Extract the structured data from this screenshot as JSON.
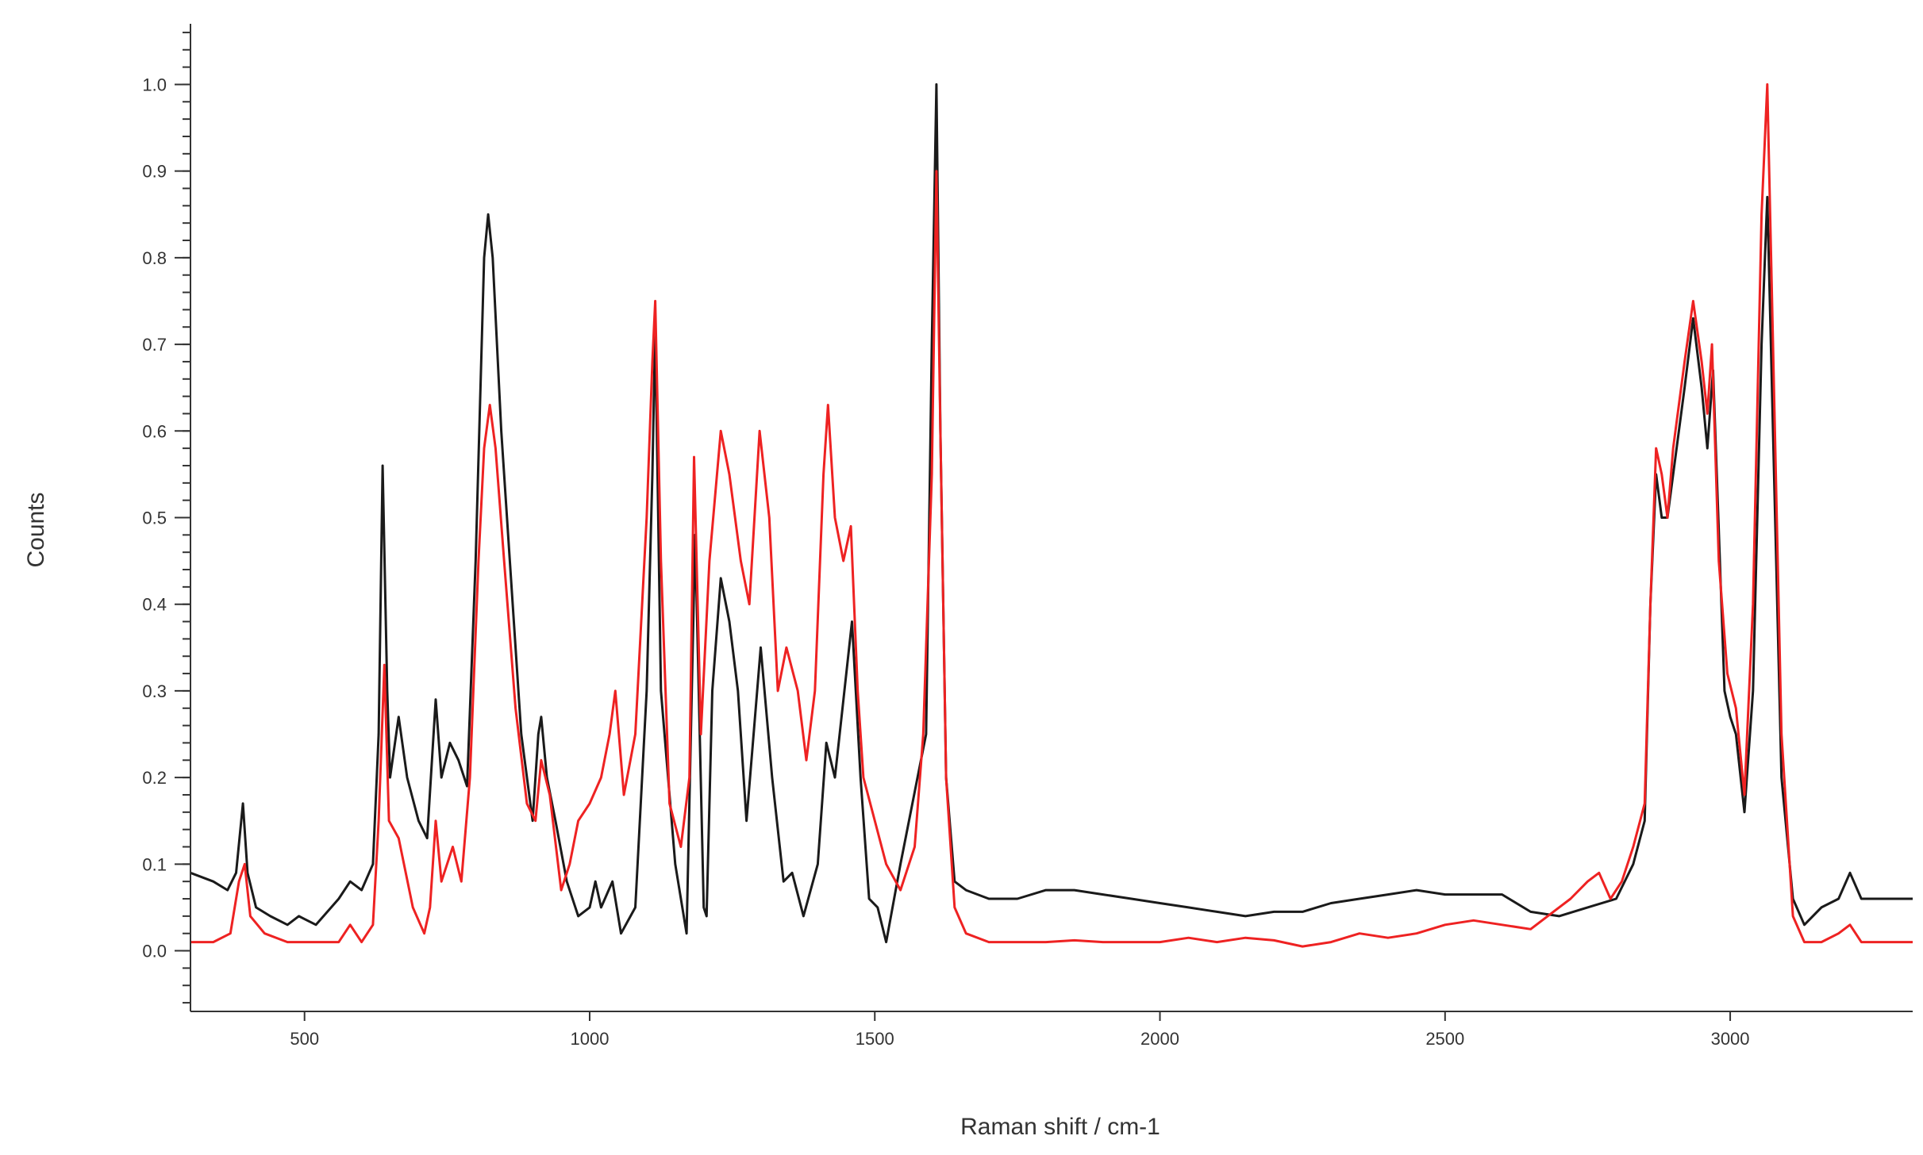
{
  "chart_data": {
    "type": "line",
    "title": "",
    "xlabel": "Raman shift / cm-1",
    "ylabel": "Counts",
    "xlim": [
      300,
      3320
    ],
    "ylim": [
      -0.07,
      1.07
    ],
    "x_ticks": [
      500,
      1000,
      1500,
      2000,
      2500,
      3000
    ],
    "x_tick_labels": [
      "500",
      "1000",
      "1500",
      "2000",
      "2500",
      "3000"
    ],
    "y_ticks": [
      0.0,
      0.1,
      0.2,
      0.3,
      0.4,
      0.5,
      0.6,
      0.7,
      0.8,
      0.9,
      1.0
    ],
    "y_tick_labels": [
      "0.0",
      "0.1",
      "0.2",
      "0.3",
      "0.4",
      "0.5",
      "0.6",
      "0.7",
      "0.8",
      "0.9",
      "1.0"
    ],
    "y_minor_step": 0.02,
    "grid": false,
    "legend": "none",
    "series": [
      {
        "color": "#1a1a1a",
        "points": [
          [
            300,
            0.09
          ],
          [
            340,
            0.08
          ],
          [
            365,
            0.07
          ],
          [
            380,
            0.09
          ],
          [
            392,
            0.17
          ],
          [
            400,
            0.09
          ],
          [
            415,
            0.05
          ],
          [
            440,
            0.04
          ],
          [
            470,
            0.03
          ],
          [
            490,
            0.04
          ],
          [
            520,
            0.03
          ],
          [
            560,
            0.06
          ],
          [
            580,
            0.08
          ],
          [
            600,
            0.07
          ],
          [
            620,
            0.1
          ],
          [
            630,
            0.25
          ],
          [
            637,
            0.56
          ],
          [
            645,
            0.3
          ],
          [
            650,
            0.2
          ],
          [
            665,
            0.27
          ],
          [
            680,
            0.2
          ],
          [
            700,
            0.15
          ],
          [
            715,
            0.13
          ],
          [
            730,
            0.29
          ],
          [
            740,
            0.2
          ],
          [
            755,
            0.24
          ],
          [
            770,
            0.22
          ],
          [
            785,
            0.19
          ],
          [
            800,
            0.45
          ],
          [
            815,
            0.8
          ],
          [
            822,
            0.85
          ],
          [
            830,
            0.8
          ],
          [
            845,
            0.6
          ],
          [
            860,
            0.45
          ],
          [
            880,
            0.25
          ],
          [
            900,
            0.15
          ],
          [
            910,
            0.25
          ],
          [
            915,
            0.27
          ],
          [
            925,
            0.2
          ],
          [
            940,
            0.15
          ],
          [
            960,
            0.08
          ],
          [
            980,
            0.04
          ],
          [
            1000,
            0.05
          ],
          [
            1010,
            0.08
          ],
          [
            1020,
            0.05
          ],
          [
            1040,
            0.08
          ],
          [
            1055,
            0.02
          ],
          [
            1080,
            0.05
          ],
          [
            1100,
            0.3
          ],
          [
            1110,
            0.55
          ],
          [
            1115,
            0.72
          ],
          [
            1125,
            0.3
          ],
          [
            1150,
            0.1
          ],
          [
            1170,
            0.02
          ],
          [
            1185,
            0.48
          ],
          [
            1200,
            0.05
          ],
          [
            1205,
            0.04
          ],
          [
            1215,
            0.3
          ],
          [
            1230,
            0.43
          ],
          [
            1245,
            0.38
          ],
          [
            1260,
            0.3
          ],
          [
            1275,
            0.15
          ],
          [
            1300,
            0.35
          ],
          [
            1320,
            0.2
          ],
          [
            1340,
            0.08
          ],
          [
            1355,
            0.09
          ],
          [
            1375,
            0.04
          ],
          [
            1400,
            0.1
          ],
          [
            1415,
            0.24
          ],
          [
            1430,
            0.2
          ],
          [
            1460,
            0.38
          ],
          [
            1475,
            0.2
          ],
          [
            1490,
            0.06
          ],
          [
            1505,
            0.05
          ],
          [
            1520,
            0.01
          ],
          [
            1545,
            0.1
          ],
          [
            1575,
            0.2
          ],
          [
            1590,
            0.25
          ],
          [
            1600,
            0.7
          ],
          [
            1608,
            1.0
          ],
          [
            1615,
            0.6
          ],
          [
            1625,
            0.2
          ],
          [
            1640,
            0.08
          ],
          [
            1660,
            0.07
          ],
          [
            1700,
            0.06
          ],
          [
            1750,
            0.06
          ],
          [
            1800,
            0.07
          ],
          [
            1850,
            0.07
          ],
          [
            1900,
            0.065
          ],
          [
            1950,
            0.06
          ],
          [
            2000,
            0.055
          ],
          [
            2050,
            0.05
          ],
          [
            2100,
            0.045
          ],
          [
            2150,
            0.04
          ],
          [
            2200,
            0.045
          ],
          [
            2250,
            0.045
          ],
          [
            2300,
            0.055
          ],
          [
            2350,
            0.06
          ],
          [
            2400,
            0.065
          ],
          [
            2450,
            0.07
          ],
          [
            2500,
            0.065
          ],
          [
            2550,
            0.065
          ],
          [
            2600,
            0.065
          ],
          [
            2650,
            0.045
          ],
          [
            2700,
            0.04
          ],
          [
            2750,
            0.05
          ],
          [
            2800,
            0.06
          ],
          [
            2830,
            0.1
          ],
          [
            2850,
            0.15
          ],
          [
            2860,
            0.4
          ],
          [
            2870,
            0.55
          ],
          [
            2880,
            0.5
          ],
          [
            2890,
            0.5
          ],
          [
            2900,
            0.55
          ],
          [
            2920,
            0.65
          ],
          [
            2935,
            0.73
          ],
          [
            2950,
            0.65
          ],
          [
            2960,
            0.58
          ],
          [
            2970,
            0.67
          ],
          [
            2990,
            0.3
          ],
          [
            3000,
            0.27
          ],
          [
            3010,
            0.25
          ],
          [
            3025,
            0.16
          ],
          [
            3040,
            0.3
          ],
          [
            3055,
            0.7
          ],
          [
            3065,
            0.87
          ],
          [
            3075,
            0.6
          ],
          [
            3090,
            0.2
          ],
          [
            3110,
            0.06
          ],
          [
            3130,
            0.03
          ],
          [
            3160,
            0.05
          ],
          [
            3190,
            0.06
          ],
          [
            3210,
            0.09
          ],
          [
            3230,
            0.06
          ],
          [
            3260,
            0.06
          ],
          [
            3300,
            0.06
          ],
          [
            3320,
            0.06
          ]
        ]
      },
      {
        "color": "#ee2222",
        "points": [
          [
            300,
            0.01
          ],
          [
            340,
            0.01
          ],
          [
            370,
            0.02
          ],
          [
            385,
            0.08
          ],
          [
            395,
            0.1
          ],
          [
            405,
            0.04
          ],
          [
            430,
            0.02
          ],
          [
            470,
            0.01
          ],
          [
            520,
            0.01
          ],
          [
            560,
            0.01
          ],
          [
            580,
            0.03
          ],
          [
            600,
            0.01
          ],
          [
            620,
            0.03
          ],
          [
            630,
            0.15
          ],
          [
            640,
            0.33
          ],
          [
            648,
            0.15
          ],
          [
            665,
            0.13
          ],
          [
            690,
            0.05
          ],
          [
            710,
            0.02
          ],
          [
            720,
            0.05
          ],
          [
            730,
            0.15
          ],
          [
            740,
            0.08
          ],
          [
            760,
            0.12
          ],
          [
            775,
            0.08
          ],
          [
            790,
            0.2
          ],
          [
            805,
            0.45
          ],
          [
            815,
            0.58
          ],
          [
            825,
            0.63
          ],
          [
            835,
            0.58
          ],
          [
            850,
            0.45
          ],
          [
            870,
            0.28
          ],
          [
            890,
            0.17
          ],
          [
            905,
            0.15
          ],
          [
            915,
            0.22
          ],
          [
            930,
            0.18
          ],
          [
            950,
            0.07
          ],
          [
            965,
            0.1
          ],
          [
            980,
            0.15
          ],
          [
            1000,
            0.17
          ],
          [
            1020,
            0.2
          ],
          [
            1035,
            0.25
          ],
          [
            1045,
            0.3
          ],
          [
            1060,
            0.18
          ],
          [
            1080,
            0.25
          ],
          [
            1100,
            0.5
          ],
          [
            1110,
            0.68
          ],
          [
            1115,
            0.75
          ],
          [
            1125,
            0.45
          ],
          [
            1140,
            0.17
          ],
          [
            1160,
            0.12
          ],
          [
            1175,
            0.2
          ],
          [
            1183,
            0.57
          ],
          [
            1195,
            0.25
          ],
          [
            1210,
            0.45
          ],
          [
            1230,
            0.6
          ],
          [
            1245,
            0.55
          ],
          [
            1265,
            0.45
          ],
          [
            1280,
            0.4
          ],
          [
            1298,
            0.6
          ],
          [
            1315,
            0.5
          ],
          [
            1330,
            0.3
          ],
          [
            1345,
            0.35
          ],
          [
            1365,
            0.3
          ],
          [
            1380,
            0.22
          ],
          [
            1395,
            0.3
          ],
          [
            1410,
            0.55
          ],
          [
            1418,
            0.63
          ],
          [
            1430,
            0.5
          ],
          [
            1445,
            0.45
          ],
          [
            1458,
            0.49
          ],
          [
            1470,
            0.3
          ],
          [
            1480,
            0.2
          ],
          [
            1500,
            0.15
          ],
          [
            1520,
            0.1
          ],
          [
            1545,
            0.07
          ],
          [
            1570,
            0.12
          ],
          [
            1585,
            0.25
          ],
          [
            1600,
            0.55
          ],
          [
            1608,
            0.9
          ],
          [
            1615,
            0.6
          ],
          [
            1625,
            0.2
          ],
          [
            1640,
            0.05
          ],
          [
            1660,
            0.02
          ],
          [
            1700,
            0.01
          ],
          [
            1750,
            0.01
          ],
          [
            1800,
            0.01
          ],
          [
            1850,
            0.012
          ],
          [
            1900,
            0.01
          ],
          [
            1950,
            0.01
          ],
          [
            2000,
            0.01
          ],
          [
            2050,
            0.015
          ],
          [
            2100,
            0.01
          ],
          [
            2150,
            0.015
          ],
          [
            2200,
            0.012
          ],
          [
            2250,
            0.005
          ],
          [
            2300,
            0.01
          ],
          [
            2350,
            0.02
          ],
          [
            2400,
            0.015
          ],
          [
            2450,
            0.02
          ],
          [
            2500,
            0.03
          ],
          [
            2550,
            0.035
          ],
          [
            2600,
            0.03
          ],
          [
            2650,
            0.025
          ],
          [
            2700,
            0.05
          ],
          [
            2720,
            0.06
          ],
          [
            2750,
            0.08
          ],
          [
            2770,
            0.09
          ],
          [
            2790,
            0.06
          ],
          [
            2810,
            0.08
          ],
          [
            2830,
            0.12
          ],
          [
            2850,
            0.17
          ],
          [
            2860,
            0.4
          ],
          [
            2870,
            0.58
          ],
          [
            2880,
            0.55
          ],
          [
            2890,
            0.5
          ],
          [
            2900,
            0.58
          ],
          [
            2920,
            0.68
          ],
          [
            2935,
            0.75
          ],
          [
            2950,
            0.68
          ],
          [
            2960,
            0.62
          ],
          [
            2968,
            0.7
          ],
          [
            2980,
            0.45
          ],
          [
            2995,
            0.32
          ],
          [
            3010,
            0.28
          ],
          [
            3025,
            0.18
          ],
          [
            3040,
            0.4
          ],
          [
            3055,
            0.85
          ],
          [
            3065,
            1.0
          ],
          [
            3075,
            0.7
          ],
          [
            3090,
            0.25
          ],
          [
            3110,
            0.04
          ],
          [
            3130,
            0.01
          ],
          [
            3160,
            0.01
          ],
          [
            3190,
            0.02
          ],
          [
            3210,
            0.03
          ],
          [
            3230,
            0.01
          ],
          [
            3260,
            0.01
          ],
          [
            3300,
            0.01
          ],
          [
            3320,
            0.01
          ]
        ]
      }
    ]
  }
}
